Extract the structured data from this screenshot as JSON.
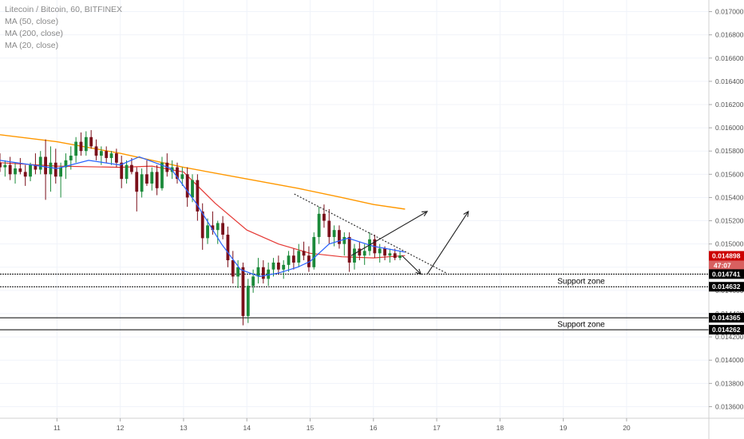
{
  "chart_data": {
    "type": "candlestick",
    "title": "Litecoin / Bitcoin, 60, BITFINEX",
    "indicators": [
      {
        "name": "MA (50, close)",
        "color": "#e53935"
      },
      {
        "name": "MA (200, close)",
        "color": "#ff9800"
      },
      {
        "name": "MA (20, close)",
        "color": "#2962ff"
      }
    ],
    "ylim": [
      0.0135,
      0.0171
    ],
    "yticks": [
      "0.017000",
      "0.016800",
      "0.016600",
      "0.016400",
      "0.016200",
      "0.016000",
      "0.015800",
      "0.015600",
      "0.015400",
      "0.015200",
      "0.015000",
      "0.014800",
      "0.014600",
      "0.014400",
      "0.014200",
      "0.014000",
      "0.013800",
      "0.013600"
    ],
    "xlim": [
      10.1,
      21.3
    ],
    "xticks": [
      "11",
      "12",
      "13",
      "14",
      "15",
      "16",
      "17",
      "18",
      "19",
      "20"
    ],
    "last_price": {
      "value": "0.014898",
      "countdown": "47:07",
      "color": "#cc0000"
    },
    "support_zones": [
      {
        "label": "Support zone",
        "top": 0.014741,
        "bottom": 0.014632,
        "top_label": "0.014741",
        "bottom_label": "0.014632"
      },
      {
        "label": "Support zone",
        "top": 0.014365,
        "bottom": 0.014262,
        "top_label": "0.014365",
        "bottom_label": "0.014262"
      }
    ],
    "trendline": {
      "from": [
        14.75,
        0.01543
      ],
      "to": [
        17.15,
        0.01475
      ]
    },
    "arrows": [
      {
        "from": [
          15.65,
          0.0149
        ],
        "to": [
          16.85,
          0.01528
        ]
      },
      {
        "from": [
          16.45,
          0.0149
        ],
        "to": [
          16.75,
          0.01474
        ]
      },
      {
        "from": [
          16.85,
          0.01474
        ],
        "to": [
          17.5,
          0.01528
        ]
      }
    ],
    "ma200": [
      [
        10.1,
        0.01594
      ],
      [
        11.0,
        0.01588
      ],
      [
        12.0,
        0.01578
      ],
      [
        13.0,
        0.01566
      ],
      [
        14.0,
        0.01556
      ],
      [
        14.8,
        0.01548
      ],
      [
        15.5,
        0.0154
      ],
      [
        16.0,
        0.01534
      ],
      [
        16.5,
        0.0153
      ]
    ],
    "ma50": [
      [
        10.1,
        0.0157
      ],
      [
        11.0,
        0.01567
      ],
      [
        12.0,
        0.01566
      ],
      [
        12.5,
        0.01567
      ],
      [
        13.0,
        0.01562
      ],
      [
        13.5,
        0.01535
      ],
      [
        14.0,
        0.01512
      ],
      [
        14.5,
        0.015
      ],
      [
        15.0,
        0.01492
      ],
      [
        15.5,
        0.01489
      ],
      [
        16.0,
        0.01488
      ],
      [
        16.5,
        0.0149
      ]
    ],
    "ma20": [
      [
        10.1,
        0.01572
      ],
      [
        11.0,
        0.01565
      ],
      [
        11.5,
        0.01572
      ],
      [
        12.0,
        0.01568
      ],
      [
        12.3,
        0.01575
      ],
      [
        12.8,
        0.01565
      ],
      [
        13.2,
        0.01535
      ],
      [
        13.6,
        0.015
      ],
      [
        13.9,
        0.01478
      ],
      [
        14.2,
        0.01472
      ],
      [
        14.5,
        0.01475
      ],
      [
        14.8,
        0.0148
      ],
      [
        15.0,
        0.01485
      ],
      [
        15.3,
        0.015
      ],
      [
        15.6,
        0.01505
      ],
      [
        16.0,
        0.01498
      ],
      [
        16.3,
        0.01495
      ],
      [
        16.5,
        0.01493
      ]
    ],
    "candles": [
      [
        10.1,
        0.0157,
        0.01578,
        0.01562,
        0.01566
      ],
      [
        10.18,
        0.01566,
        0.01572,
        0.01558,
        0.01568
      ],
      [
        10.26,
        0.01568,
        0.01575,
        0.01555,
        0.0156
      ],
      [
        10.34,
        0.0156,
        0.0157,
        0.01552,
        0.01565
      ],
      [
        10.42,
        0.01565,
        0.01574,
        0.0156,
        0.01562
      ],
      [
        10.5,
        0.01562,
        0.01568,
        0.0155,
        0.01558
      ],
      [
        10.58,
        0.01558,
        0.0157,
        0.01554,
        0.01568
      ],
      [
        10.66,
        0.01568,
        0.01578,
        0.0156,
        0.01564
      ],
      [
        10.74,
        0.01564,
        0.0158,
        0.0156,
        0.01575
      ],
      [
        10.82,
        0.01575,
        0.0159,
        0.01538,
        0.0156
      ],
      [
        10.9,
        0.0156,
        0.01584,
        0.01545,
        0.0157
      ],
      [
        10.98,
        0.0157,
        0.01582,
        0.01552,
        0.01558
      ],
      [
        11.06,
        0.01558,
        0.0157,
        0.0154,
        0.01566
      ],
      [
        11.14,
        0.01566,
        0.01578,
        0.01556,
        0.01572
      ],
      [
        11.22,
        0.01572,
        0.01584,
        0.01564,
        0.01576
      ],
      [
        11.3,
        0.01576,
        0.01592,
        0.0157,
        0.01588
      ],
      [
        11.38,
        0.01588,
        0.01596,
        0.01576,
        0.0158
      ],
      [
        11.46,
        0.0158,
        0.01597,
        0.01576,
        0.01592
      ],
      [
        11.54,
        0.01592,
        0.01598,
        0.01582,
        0.01584
      ],
      [
        11.62,
        0.01584,
        0.0159,
        0.01572,
        0.01576
      ],
      [
        11.7,
        0.01576,
        0.01584,
        0.01568,
        0.0158
      ],
      [
        11.78,
        0.0158,
        0.01584,
        0.0157,
        0.01574
      ],
      [
        11.86,
        0.01574,
        0.0158,
        0.01568,
        0.01578
      ],
      [
        11.94,
        0.01578,
        0.01582,
        0.01566,
        0.0157
      ],
      [
        12.02,
        0.0157,
        0.01576,
        0.01548,
        0.01556
      ],
      [
        12.1,
        0.01556,
        0.01572,
        0.01552,
        0.01568
      ],
      [
        12.18,
        0.01568,
        0.01574,
        0.0156,
        0.01562
      ],
      [
        12.26,
        0.01562,
        0.01566,
        0.01528,
        0.01545
      ],
      [
        12.34,
        0.01545,
        0.01565,
        0.0154,
        0.0156
      ],
      [
        12.42,
        0.0156,
        0.01572,
        0.0155,
        0.01552
      ],
      [
        12.5,
        0.01552,
        0.01566,
        0.01546,
        0.01562
      ],
      [
        12.58,
        0.01562,
        0.01568,
        0.01542,
        0.01548
      ],
      [
        12.66,
        0.01548,
        0.01575,
        0.01546,
        0.0157
      ],
      [
        12.74,
        0.0157,
        0.01578,
        0.01558,
        0.01562
      ],
      [
        12.82,
        0.01562,
        0.01572,
        0.01556,
        0.01566
      ],
      [
        12.9,
        0.01566,
        0.0157,
        0.01552,
        0.01556
      ],
      [
        12.98,
        0.01556,
        0.01566,
        0.0155,
        0.0156
      ],
      [
        13.06,
        0.0156,
        0.01566,
        0.01532,
        0.0154
      ],
      [
        13.14,
        0.0154,
        0.0156,
        0.01536,
        0.01555
      ],
      [
        13.22,
        0.01555,
        0.0156,
        0.0152,
        0.01528
      ],
      [
        13.3,
        0.01528,
        0.01535,
        0.01495,
        0.01505
      ],
      [
        13.38,
        0.01505,
        0.01522,
        0.015,
        0.01516
      ],
      [
        13.46,
        0.01516,
        0.01528,
        0.01508,
        0.01512
      ],
      [
        13.54,
        0.01512,
        0.0152,
        0.015,
        0.01518
      ],
      [
        13.62,
        0.01518,
        0.01524,
        0.01504,
        0.01508
      ],
      [
        13.7,
        0.01508,
        0.01515,
        0.0148,
        0.01486
      ],
      [
        13.78,
        0.01486,
        0.01494,
        0.01466,
        0.01472
      ],
      [
        13.86,
        0.01472,
        0.01486,
        0.01462,
        0.0148
      ],
      [
        13.94,
        0.0148,
        0.01484,
        0.0143,
        0.01438
      ],
      [
        14.02,
        0.01438,
        0.0147,
        0.01432,
        0.01464
      ],
      [
        14.1,
        0.01464,
        0.01478,
        0.01458,
        0.01472
      ],
      [
        14.18,
        0.01472,
        0.01488,
        0.01466,
        0.0148
      ],
      [
        14.26,
        0.0148,
        0.01486,
        0.01466,
        0.0147
      ],
      [
        14.34,
        0.0147,
        0.01484,
        0.01464,
        0.01478
      ],
      [
        14.42,
        0.01478,
        0.01488,
        0.01472,
        0.01484
      ],
      [
        14.5,
        0.01484,
        0.0149,
        0.01474,
        0.01478
      ],
      [
        14.58,
        0.01478,
        0.01486,
        0.0147,
        0.01482
      ],
      [
        14.66,
        0.01482,
        0.01494,
        0.01476,
        0.0149
      ],
      [
        14.74,
        0.0149,
        0.01496,
        0.01478,
        0.01484
      ],
      [
        14.82,
        0.01484,
        0.015,
        0.0148,
        0.01494
      ],
      [
        14.9,
        0.01494,
        0.01502,
        0.01486,
        0.0149
      ],
      [
        14.98,
        0.0149,
        0.01498,
        0.01476,
        0.0148
      ],
      [
        15.06,
        0.0148,
        0.0151,
        0.01478,
        0.01506
      ],
      [
        15.14,
        0.01506,
        0.01532,
        0.015,
        0.01526
      ],
      [
        15.22,
        0.01526,
        0.01534,
        0.01514,
        0.0152
      ],
      [
        15.3,
        0.0152,
        0.0153,
        0.015,
        0.01506
      ],
      [
        15.38,
        0.01506,
        0.01516,
        0.01498,
        0.01512
      ],
      [
        15.46,
        0.01512,
        0.01516,
        0.01496,
        0.015
      ],
      [
        15.54,
        0.015,
        0.0151,
        0.0149,
        0.01506
      ],
      [
        15.62,
        0.01506,
        0.0151,
        0.01476,
        0.01484
      ],
      [
        15.7,
        0.01484,
        0.015,
        0.01478,
        0.01496
      ],
      [
        15.78,
        0.01496,
        0.01502,
        0.01486,
        0.0149
      ],
      [
        15.86,
        0.0149,
        0.015,
        0.01482,
        0.01494
      ],
      [
        15.94,
        0.01494,
        0.0151,
        0.0149,
        0.01504
      ],
      [
        16.02,
        0.01504,
        0.01508,
        0.01488,
        0.01492
      ],
      [
        16.1,
        0.01492,
        0.015,
        0.01484,
        0.01496
      ],
      [
        16.18,
        0.01496,
        0.01498,
        0.01486,
        0.0149
      ],
      [
        16.26,
        0.0149,
        0.01496,
        0.01484,
        0.01492
      ],
      [
        16.34,
        0.01492,
        0.01496,
        0.01486,
        0.01488
      ],
      [
        16.42,
        0.01488,
        0.01494,
        0.01486,
        0.0149
      ]
    ]
  }
}
